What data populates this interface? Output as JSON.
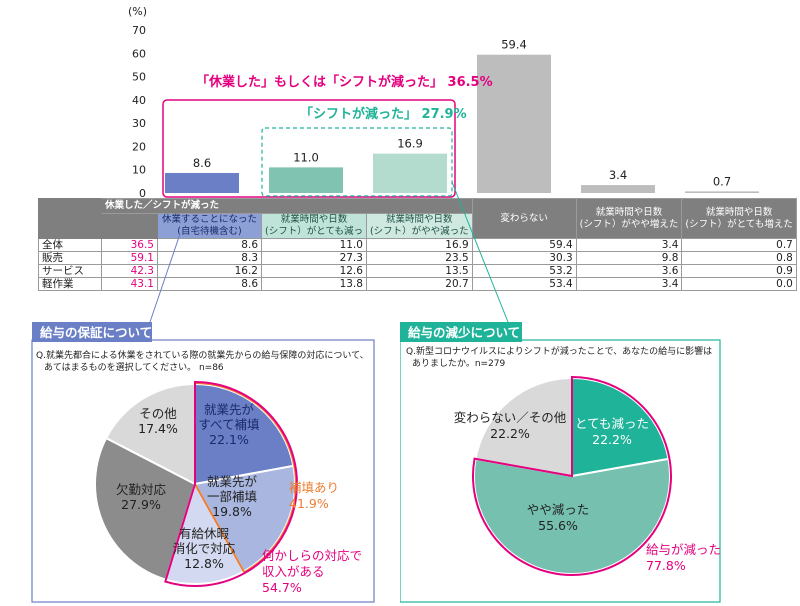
{
  "chart_data": [
    {
      "type": "bar",
      "unit_label": "(%)",
      "yticks": [
        0,
        10,
        20,
        30,
        40,
        50,
        60,
        70
      ],
      "ylim": [
        0,
        70
      ],
      "values": [
        8.6,
        11.0,
        16.9,
        59.4,
        3.4,
        0.7
      ],
      "value_labels": [
        "8.6",
        "11.0",
        "16.9",
        "59.4",
        "3.4",
        "0.7"
      ],
      "colors": [
        "#6a7fc5",
        "#7fc3b0",
        "#b3dccf",
        "#bdbdbd",
        "#bdbdbd",
        "#bdbdbd"
      ],
      "annotation_outer": "「休業した」もしくは「シフトが減った」 36.5%",
      "annotation_inner": "「シフトが減った」 27.9%"
    },
    {
      "type": "table",
      "group_header": "休業した／シフトが減った",
      "col_headers": [
        [
          "休業することになった",
          "(自宅待機含む)"
        ],
        [
          "就業時間や日数",
          "(シフト）がとても減っ"
        ],
        [
          "就業時間や日数",
          "(シフト）がやや減った"
        ],
        [
          "変わらない"
        ],
        [
          "就業時間や日数",
          "(シフト）がやや増えた"
        ],
        [
          "就業時間や日数",
          "(シフト）がとても増えた"
        ]
      ],
      "rows": [
        {
          "label": "全体",
          "total": "36.5",
          "values": [
            "8.6",
            "11.0",
            "16.9",
            "59.4",
            "3.4",
            "0.7"
          ]
        },
        {
          "label": "販売",
          "total": "59.1",
          "values": [
            "8.3",
            "27.3",
            "23.5",
            "30.3",
            "9.8",
            "0.8"
          ]
        },
        {
          "label": "サービス",
          "total": "42.3",
          "values": [
            "16.2",
            "12.6",
            "13.5",
            "53.2",
            "3.6",
            "0.9"
          ]
        },
        {
          "label": "軽作業",
          "total": "43.1",
          "values": [
            "8.6",
            "13.8",
            "20.7",
            "53.4",
            "3.4",
            "0.0"
          ]
        }
      ]
    },
    {
      "type": "pie",
      "panel_title": "給与の保証について",
      "question": [
        "Q.就業先都合による休業をされている際の就業先からの給与保障の対応について、",
        "あてはまるものを選択してください。 n=86"
      ],
      "slices": [
        {
          "label": [
            "就業先が",
            "すべて補填"
          ],
          "value": 22.1,
          "value_label": "22.1%",
          "color": "#6a7fc5"
        },
        {
          "label": [
            "就業先が",
            "一部補填"
          ],
          "value": 19.8,
          "value_label": "19.8%",
          "color": "#a9b6e0"
        },
        {
          "label": [
            "有給休暇",
            "消化で対応"
          ],
          "value": 12.8,
          "value_label": "12.8%",
          "color": "#d3d9f0"
        },
        {
          "label": [
            "欠勤対応"
          ],
          "value": 27.9,
          "value_label": "27.9%",
          "color": "#8c8c8c"
        },
        {
          "label": [
            "その他"
          ],
          "value": 17.4,
          "value_label": "17.4%",
          "color": "#d9d9d9"
        }
      ],
      "callout_1": {
        "label": "補填あり",
        "value": "41.9%",
        "color": "#ed7d31"
      },
      "callout_2": {
        "label": [
          "何かしらの対応で",
          "収入がある"
        ],
        "value": "54.7%",
        "color": "#e4007f"
      }
    },
    {
      "type": "pie",
      "panel_title": "給与の減少について",
      "question": [
        "Q.新型コロナウイルスによりシフトが減ったことで、あなたの給与に影響は",
        "ありましたか。n=279"
      ],
      "slices": [
        {
          "label": [
            "とても減った"
          ],
          "value": 22.2,
          "value_label": "22.2%",
          "color": "#1fb39a"
        },
        {
          "label": [
            "やや減った"
          ],
          "value": 55.6,
          "value_label": "55.6%",
          "color": "#76c0b0"
        },
        {
          "label": [
            "変わらない／その他"
          ],
          "value": 22.2,
          "value_label": "22.2%",
          "color": "#d9d9d9"
        }
      ],
      "callout": {
        "label": "給与が減った",
        "value": "77.8%",
        "color": "#e4007f"
      }
    }
  ]
}
